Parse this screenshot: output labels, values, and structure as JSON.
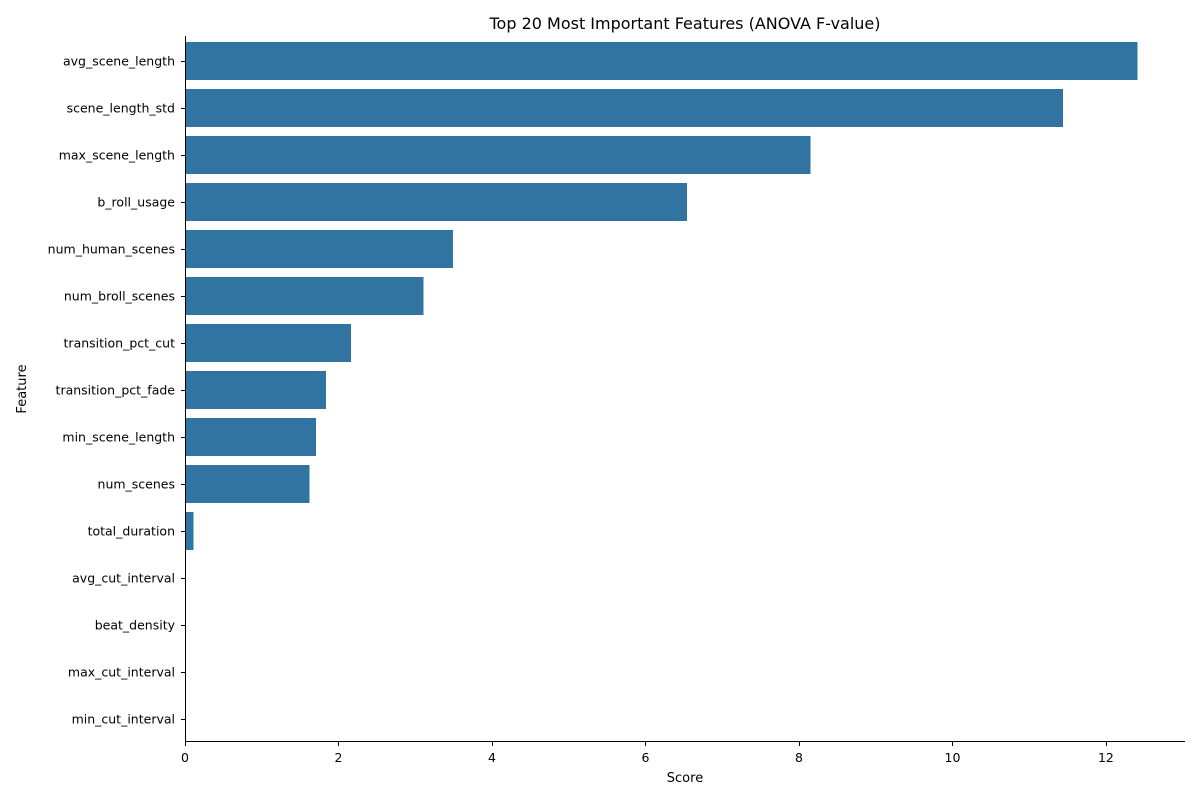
{
  "chart_data": {
    "type": "bar",
    "orientation": "horizontal",
    "title": "Top 20 Most Important Features (ANOVA F-value)",
    "xlabel": "Score",
    "ylabel": "Feature",
    "xlim": [
      0,
      13.03
    ],
    "x_ticks": [
      0,
      2,
      4,
      6,
      8,
      10,
      12
    ],
    "grid": false,
    "bar_color": "#3274a1",
    "categories": [
      "avg_scene_length",
      "scene_length_std",
      "max_scene_length",
      "b_roll_usage",
      "num_human_scenes",
      "num_broll_scenes",
      "transition_pct_cut",
      "transition_pct_fade",
      "min_scene_length",
      "num_scenes",
      "total_duration",
      "avg_cut_interval",
      "beat_density",
      "max_cut_interval",
      "min_cut_interval"
    ],
    "values": [
      12.41,
      11.44,
      8.15,
      6.54,
      3.49,
      3.11,
      2.16,
      1.84,
      1.71,
      1.62,
      0.11,
      0,
      0,
      0,
      0
    ]
  }
}
